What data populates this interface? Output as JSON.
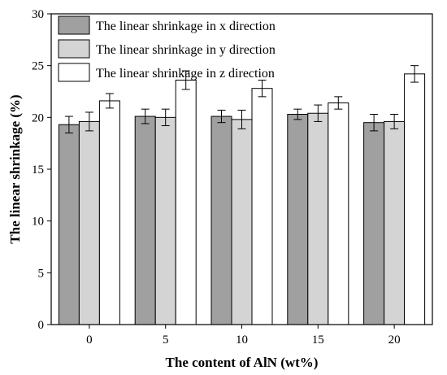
{
  "chart_data": {
    "type": "bar",
    "xlabel": "The content of AlN (wt%)",
    "ylabel": "The linear shrinkage (%)",
    "categories": [
      "0",
      "5",
      "10",
      "15",
      "20"
    ],
    "ylim": [
      0,
      30
    ],
    "yticks": [
      "0",
      "5",
      "10",
      "15",
      "20",
      "25",
      "30"
    ],
    "legend_position": "top-left",
    "grid": false,
    "series": [
      {
        "name": "The linear shrinkage in x direction",
        "color": "#a0a0a0",
        "values": [
          19.3,
          20.1,
          20.1,
          20.3,
          19.5
        ],
        "errors": [
          0.8,
          0.7,
          0.6,
          0.5,
          0.8
        ]
      },
      {
        "name": "The linear shrinkage in y direction",
        "color": "#d4d4d4",
        "values": [
          19.6,
          20.0,
          19.8,
          20.4,
          19.6
        ],
        "errors": [
          0.9,
          0.8,
          0.9,
          0.8,
          0.7
        ]
      },
      {
        "name": "The linear shrinkage in z direction",
        "color": "#ffffff",
        "values": [
          21.6,
          23.6,
          22.8,
          21.4,
          24.2
        ],
        "errors": [
          0.7,
          0.9,
          0.8,
          0.6,
          0.8
        ]
      }
    ]
  }
}
